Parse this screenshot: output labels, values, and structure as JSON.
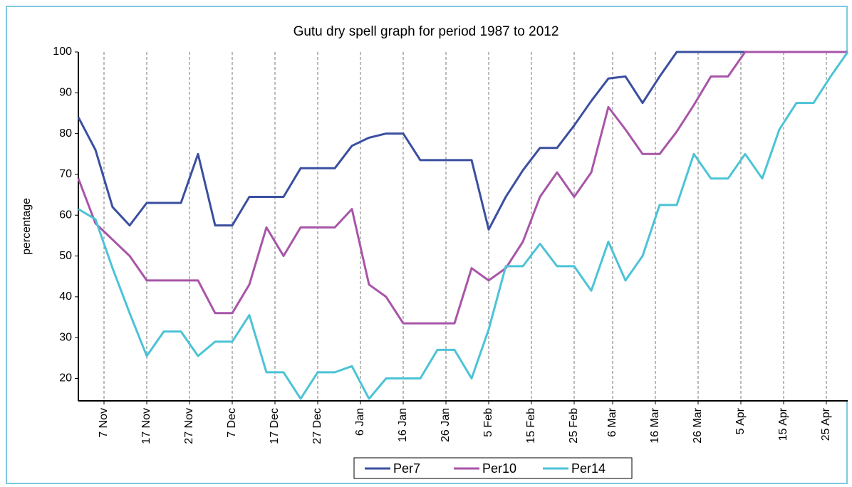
{
  "chart_data": {
    "type": "line",
    "title": "Gutu dry spell graph for period 1987 to 2012",
    "y_label": "percentage",
    "x": [
      0,
      4,
      8,
      12,
      16,
      20,
      24,
      28,
      32,
      36,
      40,
      44,
      48,
      52,
      56,
      60,
      64,
      68,
      72,
      76,
      80,
      84,
      88,
      92,
      96,
      100,
      104,
      108,
      112,
      116,
      120,
      124,
      128,
      132,
      136,
      140,
      144,
      148,
      152,
      156,
      160,
      164,
      168,
      172,
      176,
      180
    ],
    "xlim": [
      0,
      180
    ],
    "xticks": [
      {
        "value": 6,
        "label": "7 Nov"
      },
      {
        "value": 16,
        "label": "17 Nov"
      },
      {
        "value": 26,
        "label": "27 Nov"
      },
      {
        "value": 36,
        "label": "7 Dec"
      },
      {
        "value": 46,
        "label": "17 Dec"
      },
      {
        "value": 56,
        "label": "27 Dec"
      },
      {
        "value": 66,
        "label": "6 Jan"
      },
      {
        "value": 76,
        "label": "16 Jan"
      },
      {
        "value": 86,
        "label": "26 Jan"
      },
      {
        "value": 96,
        "label": "5 Feb"
      },
      {
        "value": 106,
        "label": "15 Feb"
      },
      {
        "value": 116,
        "label": "25 Feb"
      },
      {
        "value": 125,
        "label": "6 Mar"
      },
      {
        "value": 135,
        "label": "16 Mar"
      },
      {
        "value": 145,
        "label": "26 Mar"
      },
      {
        "value": 155,
        "label": "5 Apr"
      },
      {
        "value": 165,
        "label": "15 Apr"
      },
      {
        "value": 175,
        "label": "25 Apr"
      }
    ],
    "ylim": [
      14.5,
      100
    ],
    "yticks": [
      20,
      30,
      40,
      50,
      60,
      70,
      80,
      90,
      100
    ],
    "grid": "x",
    "legend": "bottom",
    "series": [
      {
        "name": "Per7",
        "color": "#3b4fa0",
        "values": [
          84,
          76,
          62,
          57.5,
          63,
          63,
          63,
          75,
          57.5,
          57.5,
          64.5,
          64.5,
          64.5,
          71.5,
          71.5,
          71.5,
          77,
          79,
          80,
          80,
          73.5,
          73.5,
          73.5,
          73.5,
          56.5,
          64.5,
          71,
          76.5,
          76.5,
          82,
          88,
          93.5,
          94,
          87.5,
          94,
          100,
          100,
          100,
          100,
          100,
          100,
          100,
          100,
          100,
          100,
          100
        ]
      },
      {
        "name": "Per10",
        "color": "#a855a8",
        "values": [
          69,
          58,
          54,
          50,
          44,
          44,
          44,
          44,
          36,
          36,
          43,
          57,
          50,
          57,
          57,
          57,
          61.5,
          43,
          40,
          33.5,
          33.5,
          33.5,
          33.5,
          47,
          44,
          47,
          53.5,
          64.5,
          70.5,
          64.5,
          70.5,
          86.5,
          81,
          75,
          75,
          80.5,
          87,
          94,
          94,
          100,
          100,
          100,
          100,
          100,
          100,
          100
        ]
      },
      {
        "name": "Per14",
        "color": "#4cc3d6",
        "values": [
          61.5,
          59,
          47,
          36,
          25.5,
          31.5,
          31.5,
          25.5,
          29,
          29,
          35.5,
          21.5,
          21.5,
          15,
          21.5,
          21.5,
          23,
          15,
          20,
          20,
          20,
          27,
          27,
          20,
          32,
          47.5,
          47.5,
          53,
          47.5,
          47.5,
          41.5,
          53.5,
          44,
          50,
          62.5,
          62.5,
          75,
          69,
          69,
          75,
          69,
          81,
          87.5,
          87.5,
          94,
          100
        ]
      }
    ]
  }
}
